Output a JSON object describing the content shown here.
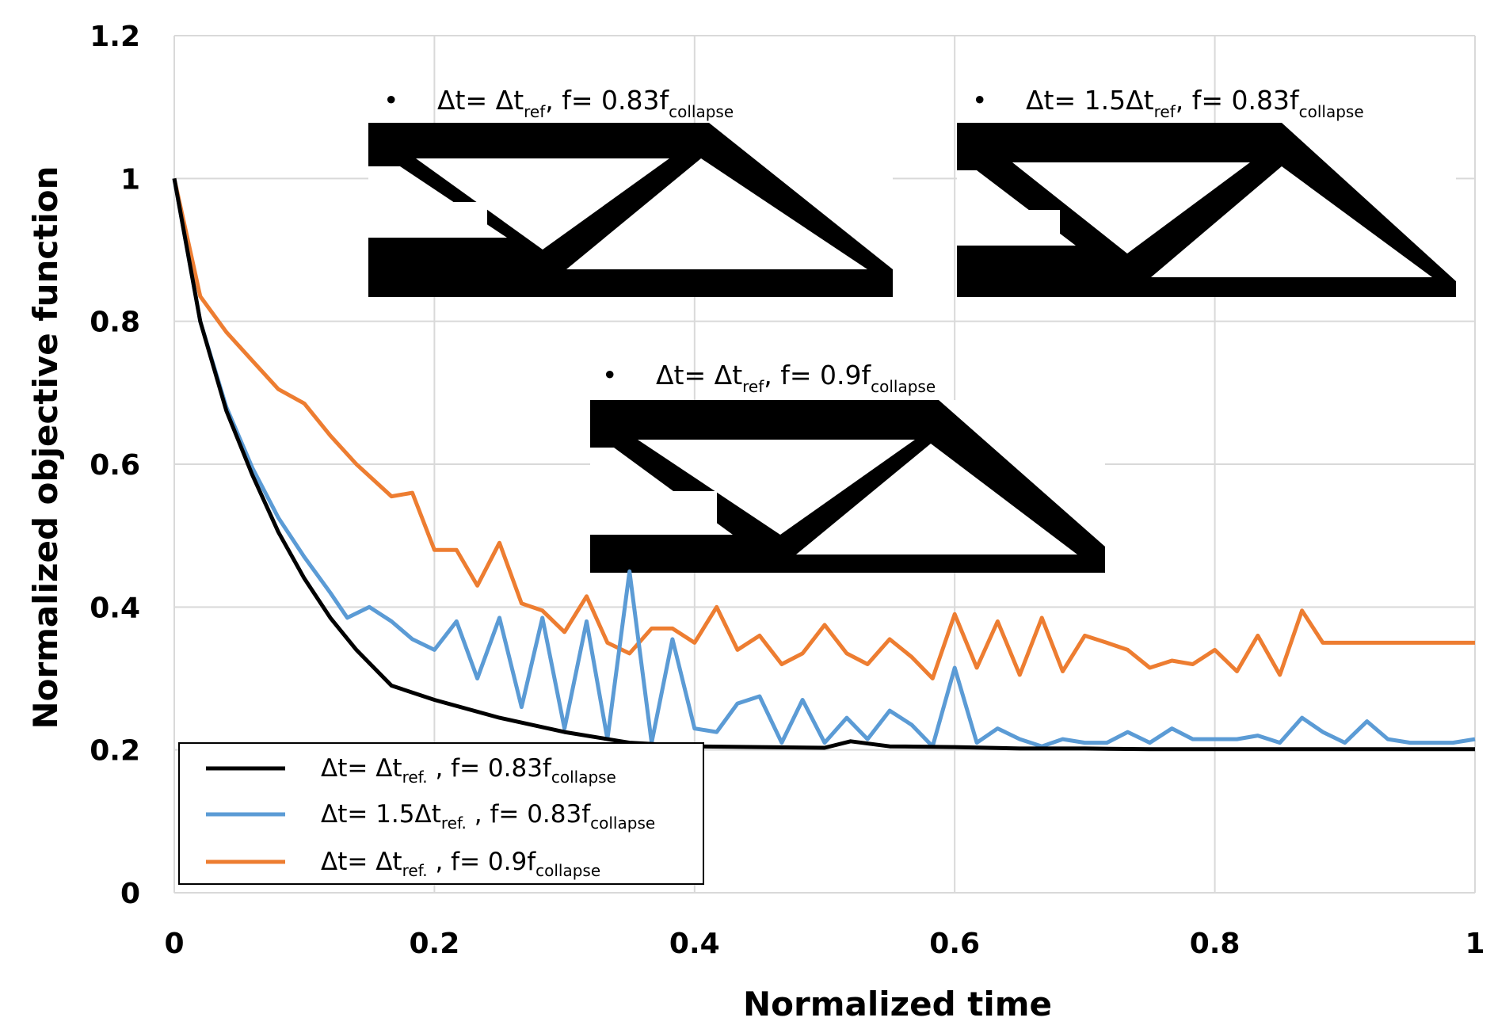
{
  "chart_data": {
    "type": "line",
    "title": "",
    "xlabel": "Normalized time",
    "ylabel": "Normalized objective function",
    "xlim": [
      0,
      1
    ],
    "ylim": [
      0,
      1.2
    ],
    "x_ticks": [
      "0",
      "0.2",
      "0.4",
      "0.6",
      "0.8",
      "1"
    ],
    "y_ticks": [
      "0",
      "0.2",
      "0.4",
      "0.6",
      "0.8",
      "1",
      "1.2"
    ],
    "grid": true,
    "legend_position": "bottom-left",
    "series": [
      {
        "name": "Δt= Δtref. , f= 0.83fcollapse",
        "label_parts": {
          "a": "Δt= Δt",
          "b": "ref.",
          "c": " , f= 0.83f",
          "d": "collapse"
        },
        "color": "#000000",
        "x": [
          0,
          0.02,
          0.04,
          0.06,
          0.08,
          0.1,
          0.12,
          0.14,
          0.167,
          0.2,
          0.25,
          0.3,
          0.35,
          0.4,
          0.45,
          0.5,
          0.52,
          0.55,
          0.6,
          0.65,
          0.7,
          0.75,
          0.8,
          0.85,
          0.9,
          0.95,
          1.0
        ],
        "y": [
          1.0,
          0.8,
          0.675,
          0.585,
          0.505,
          0.44,
          0.385,
          0.34,
          0.29,
          0.27,
          0.245,
          0.225,
          0.21,
          0.205,
          0.204,
          0.203,
          0.212,
          0.205,
          0.204,
          0.202,
          0.202,
          0.201,
          0.201,
          0.201,
          0.201,
          0.201,
          0.201
        ]
      },
      {
        "name": "Δt= 1.5Δtref. , f= 0.83fcollapse",
        "label_parts": {
          "a": "Δt= 1.5Δt",
          "b": "ref.",
          "c": " , f= 0.83f",
          "d": "collapse"
        },
        "color": "#5B9BD5",
        "x": [
          0,
          0.02,
          0.04,
          0.06,
          0.08,
          0.1,
          0.12,
          0.133,
          0.15,
          0.167,
          0.183,
          0.2,
          0.217,
          0.233,
          0.25,
          0.267,
          0.283,
          0.3,
          0.317,
          0.333,
          0.35,
          0.367,
          0.383,
          0.4,
          0.417,
          0.433,
          0.45,
          0.467,
          0.483,
          0.5,
          0.517,
          0.533,
          0.55,
          0.567,
          0.583,
          0.6,
          0.617,
          0.633,
          0.65,
          0.667,
          0.683,
          0.7,
          0.717,
          0.733,
          0.75,
          0.767,
          0.783,
          0.8,
          0.817,
          0.833,
          0.85,
          0.867,
          0.883,
          0.9,
          0.917,
          0.933,
          0.95,
          0.967,
          0.983,
          1.0
        ],
        "y": [
          1.0,
          0.8,
          0.68,
          0.595,
          0.525,
          0.47,
          0.42,
          0.385,
          0.4,
          0.38,
          0.355,
          0.34,
          0.38,
          0.3,
          0.385,
          0.26,
          0.385,
          0.23,
          0.38,
          0.215,
          0.45,
          0.21,
          0.355,
          0.23,
          0.225,
          0.265,
          0.275,
          0.21,
          0.27,
          0.21,
          0.245,
          0.215,
          0.255,
          0.235,
          0.205,
          0.315,
          0.21,
          0.23,
          0.215,
          0.205,
          0.215,
          0.21,
          0.21,
          0.225,
          0.21,
          0.23,
          0.215,
          0.215,
          0.215,
          0.22,
          0.21,
          0.245,
          0.225,
          0.21,
          0.24,
          0.215,
          0.21,
          0.21,
          0.21,
          0.215
        ]
      },
      {
        "name": "Δt= Δtref. , f= 0.9fcollapse",
        "label_parts": {
          "a": "Δt= Δt",
          "b": "ref.",
          "c": " , f= 0.9f",
          "d": "collapse"
        },
        "color": "#ED7D31",
        "x": [
          0,
          0.02,
          0.04,
          0.06,
          0.08,
          0.1,
          0.12,
          0.14,
          0.167,
          0.183,
          0.2,
          0.217,
          0.233,
          0.25,
          0.267,
          0.283,
          0.3,
          0.317,
          0.333,
          0.35,
          0.367,
          0.383,
          0.4,
          0.417,
          0.433,
          0.45,
          0.467,
          0.483,
          0.5,
          0.517,
          0.533,
          0.55,
          0.567,
          0.583,
          0.6,
          0.617,
          0.633,
          0.65,
          0.667,
          0.683,
          0.7,
          0.717,
          0.733,
          0.75,
          0.767,
          0.783,
          0.8,
          0.817,
          0.833,
          0.85,
          0.867,
          0.883,
          0.9,
          0.917,
          0.933,
          0.95,
          0.967,
          0.983,
          1.0
        ],
        "y": [
          1.0,
          0.835,
          0.785,
          0.745,
          0.705,
          0.685,
          0.64,
          0.6,
          0.555,
          0.56,
          0.48,
          0.48,
          0.43,
          0.49,
          0.405,
          0.395,
          0.365,
          0.415,
          0.35,
          0.335,
          0.37,
          0.37,
          0.35,
          0.4,
          0.34,
          0.36,
          0.32,
          0.335,
          0.375,
          0.335,
          0.32,
          0.355,
          0.33,
          0.3,
          0.39,
          0.315,
          0.38,
          0.305,
          0.385,
          0.31,
          0.36,
          0.35,
          0.34,
          0.315,
          0.325,
          0.32,
          0.34,
          0.31,
          0.36,
          0.305,
          0.395,
          0.35,
          0.35,
          0.35,
          0.35,
          0.35,
          0.35,
          0.35,
          0.35
        ]
      }
    ],
    "insets": [
      {
        "bullet": "•",
        "a": "Δt= Δt",
        "b": "ref",
        "c": ", f= 0.83f",
        "d": "collapse"
      },
      {
        "bullet": "•",
        "a": "Δt= 1.5Δt",
        "b": "ref",
        "c": ", f= 0.83f",
        "d": "collapse"
      },
      {
        "bullet": "•",
        "a": "Δt= Δt",
        "b": "ref",
        "c": ", f= 0.9f",
        "d": "collapse"
      }
    ]
  }
}
